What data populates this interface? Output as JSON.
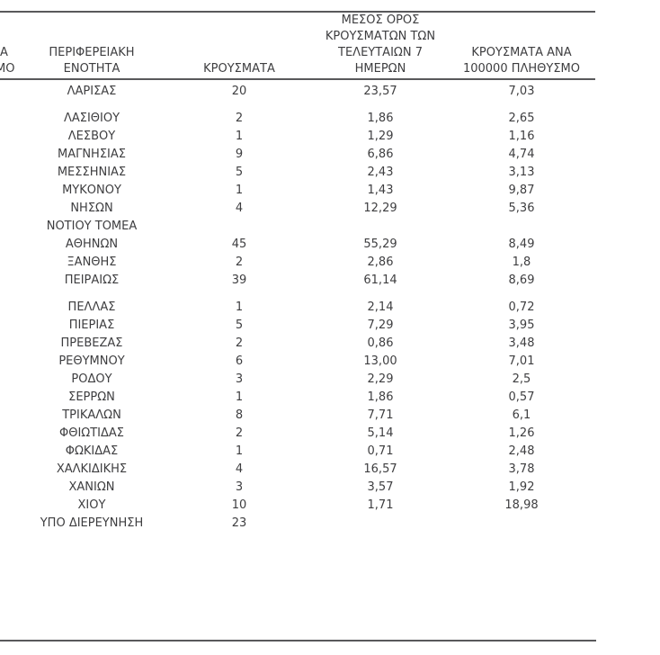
{
  "colors": {
    "text": "#3e3e40",
    "rule": "#59595b",
    "background": "#ffffff"
  },
  "table": {
    "cropped_left_column_fragments": {
      "line1": "Α",
      "line2": "ΜΟ"
    },
    "columns": [
      {
        "id": "region",
        "label_lines": [
          "ΠΕΡΙΦΕΡΕΙΑΚΗ",
          "ΕΝΟΤΗΤΑ"
        ]
      },
      {
        "id": "cases",
        "label_lines": [
          "ΚΡΟΥΣΜΑΤΑ"
        ]
      },
      {
        "id": "avg7",
        "label_lines": [
          "ΜΕΣΟΣ ΟΡΟΣ",
          "ΚΡΟΥΣΜΑΤΩΝ ΤΩΝ",
          "ΤΕΛΕΥΤΑΙΩΝ 7",
          "ΗΜΕΡΩΝ"
        ]
      },
      {
        "id": "per100k",
        "label_lines": [
          "ΚΡΟΥΣΜΑΤΑ ΑΝΑ",
          "100000 ΠΛΗΘΥΣΜΟ"
        ]
      }
    ],
    "rows": [
      {
        "name_lines": [
          "ΛΑΡΙΣΑΣ"
        ],
        "cases": "20",
        "avg7": "23,57",
        "per100k": "7,03"
      },
      {
        "name_lines": [
          "ΛΑΣΙΘΙΟΥ"
        ],
        "cases": "2",
        "avg7": "1,86",
        "per100k": "2,65",
        "gap_before": true
      },
      {
        "name_lines": [
          "ΛΕΣΒΟΥ"
        ],
        "cases": "1",
        "avg7": "1,29",
        "per100k": "1,16"
      },
      {
        "name_lines": [
          "ΜΑΓΝΗΣΙΑΣ"
        ],
        "cases": "9",
        "avg7": "6,86",
        "per100k": "4,74"
      },
      {
        "name_lines": [
          "ΜΕΣΣΗΝΙΑΣ"
        ],
        "cases": "5",
        "avg7": "2,43",
        "per100k": "3,13"
      },
      {
        "name_lines": [
          "ΜΥΚΟΝΟΥ"
        ],
        "cases": "1",
        "avg7": "1,43",
        "per100k": "9,87"
      },
      {
        "name_lines": [
          "ΝΗΣΩΝ"
        ],
        "cases": "4",
        "avg7": "12,29",
        "per100k": "5,36"
      },
      {
        "name_lines": [
          "ΝΟΤΙΟΥ ΤΟΜΕΑ",
          "ΑΘΗΝΩΝ"
        ],
        "cases": "45",
        "avg7": "55,29",
        "per100k": "8,49"
      },
      {
        "name_lines": [
          "ΞΑΝΘΗΣ"
        ],
        "cases": "2",
        "avg7": "2,86",
        "per100k": "1,8"
      },
      {
        "name_lines": [
          "ΠΕΙΡΑΙΩΣ"
        ],
        "cases": "39",
        "avg7": "61,14",
        "per100k": "8,69"
      },
      {
        "name_lines": [
          "ΠΕΛΛΑΣ"
        ],
        "cases": "1",
        "avg7": "2,14",
        "per100k": "0,72",
        "gap_before": true
      },
      {
        "name_lines": [
          "ΠΙΕΡΙΑΣ"
        ],
        "cases": "5",
        "avg7": "7,29",
        "per100k": "3,95"
      },
      {
        "name_lines": [
          "ΠΡΕΒΕΖΑΣ"
        ],
        "cases": "2",
        "avg7": "0,86",
        "per100k": "3,48"
      },
      {
        "name_lines": [
          "ΡΕΘΥΜΝΟΥ"
        ],
        "cases": "6",
        "avg7": "13,00",
        "per100k": "7,01"
      },
      {
        "name_lines": [
          "ΡΟΔΟΥ"
        ],
        "cases": "3",
        "avg7": "2,29",
        "per100k": "2,5"
      },
      {
        "name_lines": [
          "ΣΕΡΡΩΝ"
        ],
        "cases": "1",
        "avg7": "1,86",
        "per100k": "0,57"
      },
      {
        "name_lines": [
          "ΤΡΙΚΑΛΩΝ"
        ],
        "cases": "8",
        "avg7": "7,71",
        "per100k": "6,1"
      },
      {
        "name_lines": [
          "ΦΘΙΩΤΙΔΑΣ"
        ],
        "cases": "2",
        "avg7": "5,14",
        "per100k": "1,26"
      },
      {
        "name_lines": [
          "ΦΩΚΙΔΑΣ"
        ],
        "cases": "1",
        "avg7": "0,71",
        "per100k": "2,48"
      },
      {
        "name_lines": [
          "ΧΑΛΚΙΔΙΚΗΣ"
        ],
        "cases": "4",
        "avg7": "16,57",
        "per100k": "3,78"
      },
      {
        "name_lines": [
          "ΧΑΝΙΩΝ"
        ],
        "cases": "3",
        "avg7": "3,57",
        "per100k": "1,92"
      },
      {
        "name_lines": [
          "ΧΙΟΥ"
        ],
        "cases": "10",
        "avg7": "1,71",
        "per100k": "18,98"
      },
      {
        "name_lines": [
          "ΥΠΟ ΔΙΕΡΕΥΝΗΣΗ"
        ],
        "cases": "23",
        "avg7": "",
        "per100k": ""
      }
    ]
  }
}
